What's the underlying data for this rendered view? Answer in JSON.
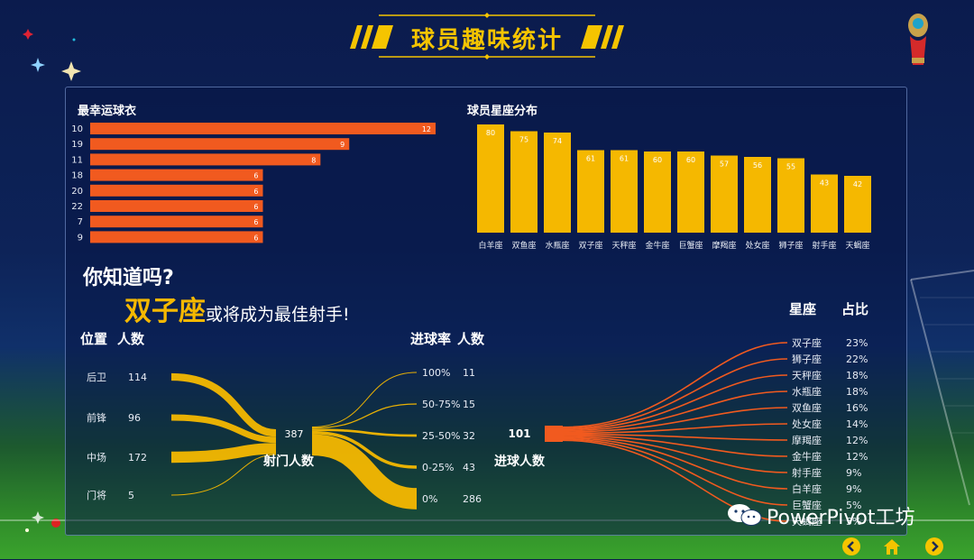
{
  "page_title": "球员趣味统计",
  "colors": {
    "orange": "#f15a1f",
    "gold": "#f5b800"
  },
  "chart_data": [
    {
      "type": "bar",
      "orientation": "horizontal",
      "title": "最幸运球衣",
      "categories": [
        "10",
        "19",
        "11",
        "18",
        "20",
        "22",
        "7",
        "9"
      ],
      "values": [
        12,
        9,
        8,
        6,
        6,
        6,
        6,
        6
      ],
      "xlim": [
        0,
        12
      ]
    },
    {
      "type": "bar",
      "title": "球员星座分布",
      "categories": [
        "白羊座",
        "双鱼座",
        "水瓶座",
        "双子座",
        "天秤座",
        "金牛座",
        "巨蟹座",
        "摩羯座",
        "处女座",
        "狮子座",
        "射手座",
        "天蝎座"
      ],
      "values": [
        80,
        75,
        74,
        61,
        61,
        60,
        60,
        57,
        56,
        55,
        43,
        42
      ],
      "ylim": [
        0,
        80
      ]
    },
    {
      "type": "sankey",
      "left_header": [
        "位置",
        "人数"
      ],
      "right_header": [
        "进球率",
        "人数"
      ],
      "center_label": "射门人数",
      "center_value": 387,
      "sources": [
        {
          "label": "后卫",
          "value": 114
        },
        {
          "label": "前锋",
          "value": 96
        },
        {
          "label": "中场",
          "value": 172
        },
        {
          "label": "门将",
          "value": 5
        }
      ],
      "targets": [
        {
          "label": "100%",
          "value": 11
        },
        {
          "label": "50-75%",
          "value": 15
        },
        {
          "label": "25-50%",
          "value": 32
        },
        {
          "label": "0-25%",
          "value": 43
        },
        {
          "label": "0%",
          "value": 286
        }
      ]
    },
    {
      "type": "sankey",
      "center_label": "进球人数",
      "center_value": 101,
      "right_header": [
        "星座",
        "占比"
      ],
      "targets": [
        {
          "label": "双子座",
          "value": "23%"
        },
        {
          "label": "狮子座",
          "value": "22%"
        },
        {
          "label": "天秤座",
          "value": "18%"
        },
        {
          "label": "水瓶座",
          "value": "18%"
        },
        {
          "label": "双鱼座",
          "value": "16%"
        },
        {
          "label": "处女座",
          "value": "14%"
        },
        {
          "label": "摩羯座",
          "value": "12%"
        },
        {
          "label": "金牛座",
          "value": "12%"
        },
        {
          "label": "射手座",
          "value": "9%"
        },
        {
          "label": "白羊座",
          "value": "9%"
        },
        {
          "label": "巨蟹座",
          "value": "5%"
        },
        {
          "label": "天蝎座",
          "value": "5%"
        }
      ]
    }
  ],
  "callout": {
    "question": "你知道吗?",
    "highlight": "双子座",
    "rest": "或将成为最佳射手!"
  },
  "watermark": "PowerPivot工坊"
}
